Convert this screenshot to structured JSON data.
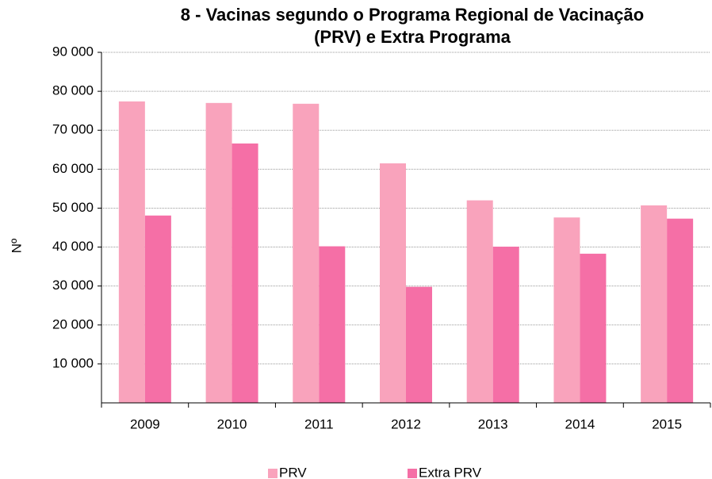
{
  "chart_data": {
    "type": "bar",
    "title": [
      "8 - Vacinas segundo o Programa Regional de Vacinação",
      "(PRV) e Extra Programa"
    ],
    "y_label": "Nº",
    "categories": [
      "2009",
      "2010",
      "2011",
      "2012",
      "2013",
      "2014",
      "2015"
    ],
    "series": [
      {
        "name": "PRV",
        "color": "#f9a3bc",
        "values": [
          77400,
          77000,
          76800,
          61500,
          52000,
          47600,
          50700
        ]
      },
      {
        "name": "Extra PRV",
        "color": "#f56fa6",
        "values": [
          48100,
          66600,
          40200,
          29800,
          40100,
          38300,
          47300
        ]
      }
    ],
    "ylim": [
      0,
      90000
    ],
    "yticks": [
      {
        "value": 10000,
        "label": "10 000"
      },
      {
        "value": 20000,
        "label": "20 000"
      },
      {
        "value": 30000,
        "label": "30 000"
      },
      {
        "value": 40000,
        "label": "40 000"
      },
      {
        "value": 50000,
        "label": "50 000"
      },
      {
        "value": 60000,
        "label": "60 000"
      },
      {
        "value": 70000,
        "label": "70 000"
      },
      {
        "value": 80000,
        "label": "80 000"
      },
      {
        "value": 90000,
        "label": "90 000"
      }
    ],
    "grid": true,
    "legend": "bottom"
  }
}
